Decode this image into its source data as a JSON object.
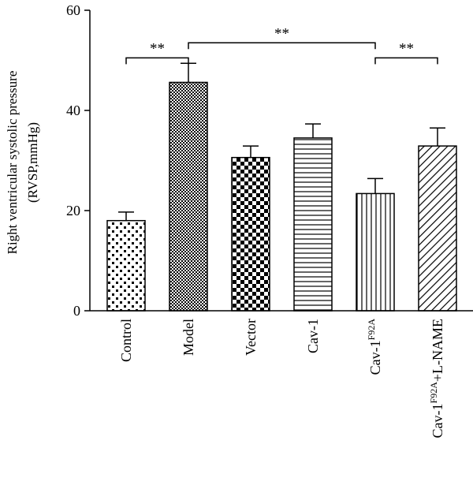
{
  "chart_data": {
    "type": "bar",
    "title": "",
    "ylabel_line1": "Right ventricular systolic pressure",
    "ylabel_line2": "(RVSP,mmHg)",
    "xlabel": "",
    "ylim": [
      0,
      60
    ],
    "yticks": [
      "0",
      "20",
      "40",
      "60"
    ],
    "grid": false,
    "legend": "none",
    "categories": [
      {
        "base": "Control",
        "sup": "",
        "tail": "",
        "pattern": "dots"
      },
      {
        "base": "Model",
        "sup": "",
        "tail": "",
        "pattern": "fine-check"
      },
      {
        "base": "Vector",
        "sup": "",
        "tail": "",
        "pattern": "checker"
      },
      {
        "base": "Cav-1",
        "sup": "",
        "tail": "",
        "pattern": "horizontal-lines"
      },
      {
        "base": "Cav-1",
        "sup": "F92A",
        "tail": "",
        "pattern": "vertical-lines"
      },
      {
        "base": "Cav-1",
        "sup": "F92A",
        "tail": "+L-NAME",
        "pattern": "diagonal-lines"
      }
    ],
    "values": [
      18,
      45.6,
      30.6,
      34.5,
      23.4,
      32.9
    ],
    "errors": [
      1.7,
      3.8,
      2.3,
      2.8,
      3.0,
      3.6
    ],
    "significance": [
      {
        "from": 0,
        "to": 1,
        "label": "**",
        "y": 50.5
      },
      {
        "from": 1,
        "to": 4,
        "label": "**",
        "y": 53.5
      },
      {
        "from": 4,
        "to": 5,
        "label": "**",
        "y": 50.5
      }
    ]
  }
}
